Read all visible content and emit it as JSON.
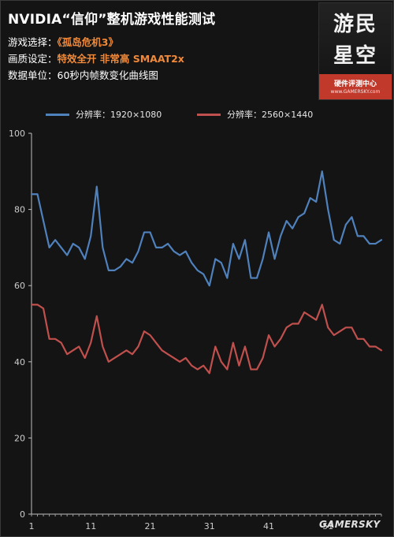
{
  "header": {
    "title": "NVIDIA“信仰”整机游戏性能测试",
    "game_key": "游戏选择：",
    "game_value": "《孤岛危机3》",
    "quality_key": "画质设定：",
    "quality_value": "特效全开  非常高  SMAAT2x",
    "unit_key": "数据单位：",
    "unit_value": "60秒内帧数变化曲线图"
  },
  "logo": {
    "chars_line1": "游民",
    "chars_line2": "星空",
    "subtitle": "硬件评测中心",
    "url": "www.GAMERSKY.com"
  },
  "watermark": "GAMERSKY",
  "colors": {
    "series1": "#4f81bd",
    "series2": "#c0504d",
    "highlight": "#f08a3a",
    "background": "#141414"
  },
  "chart_data": {
    "type": "line",
    "title": "",
    "xlabel": "",
    "ylabel": "",
    "ylim": [
      0,
      100
    ],
    "yticks": [
      0,
      20,
      40,
      60,
      80,
      100
    ],
    "xlim": [
      1,
      60
    ],
    "xticks": [
      1,
      11,
      21,
      31,
      41,
      51
    ],
    "legend_position": "top",
    "grid": false,
    "x": [
      1,
      2,
      3,
      4,
      5,
      6,
      7,
      8,
      9,
      10,
      11,
      12,
      13,
      14,
      15,
      16,
      17,
      18,
      19,
      20,
      21,
      22,
      23,
      24,
      25,
      26,
      27,
      28,
      29,
      30,
      31,
      32,
      33,
      34,
      35,
      36,
      37,
      38,
      39,
      40,
      41,
      42,
      43,
      44,
      45,
      46,
      47,
      48,
      49,
      50,
      51,
      52,
      53,
      54,
      55,
      56,
      57,
      58,
      59,
      60
    ],
    "series": [
      {
        "name": "分辨率：1920×1080",
        "color": "#4f81bd",
        "values": [
          84,
          84,
          77,
          70,
          72,
          70,
          68,
          71,
          70,
          67,
          73,
          86,
          70,
          64,
          64,
          65,
          67,
          66,
          69,
          74,
          74,
          70,
          70,
          71,
          69,
          68,
          69,
          66,
          64,
          63,
          60,
          67,
          66,
          62,
          71,
          67,
          72,
          62,
          62,
          67,
          74,
          67,
          73,
          77,
          75,
          78,
          79,
          83,
          82,
          90,
          80,
          72,
          71,
          76,
          78,
          73,
          73,
          71,
          71,
          72
        ]
      },
      {
        "name": "分辨率：2560×1440",
        "color": "#c0504d",
        "values": [
          55,
          55,
          54,
          46,
          46,
          45,
          42,
          43,
          44,
          41,
          45,
          52,
          44,
          40,
          41,
          42,
          43,
          42,
          44,
          48,
          47,
          45,
          43,
          42,
          41,
          40,
          41,
          39,
          38,
          39,
          37,
          44,
          40,
          38,
          45,
          39,
          44,
          38,
          38,
          41,
          47,
          44,
          46,
          49,
          50,
          50,
          53,
          52,
          51,
          55,
          49,
          47,
          48,
          49,
          49,
          46,
          46,
          44,
          44,
          43
        ]
      }
    ]
  }
}
